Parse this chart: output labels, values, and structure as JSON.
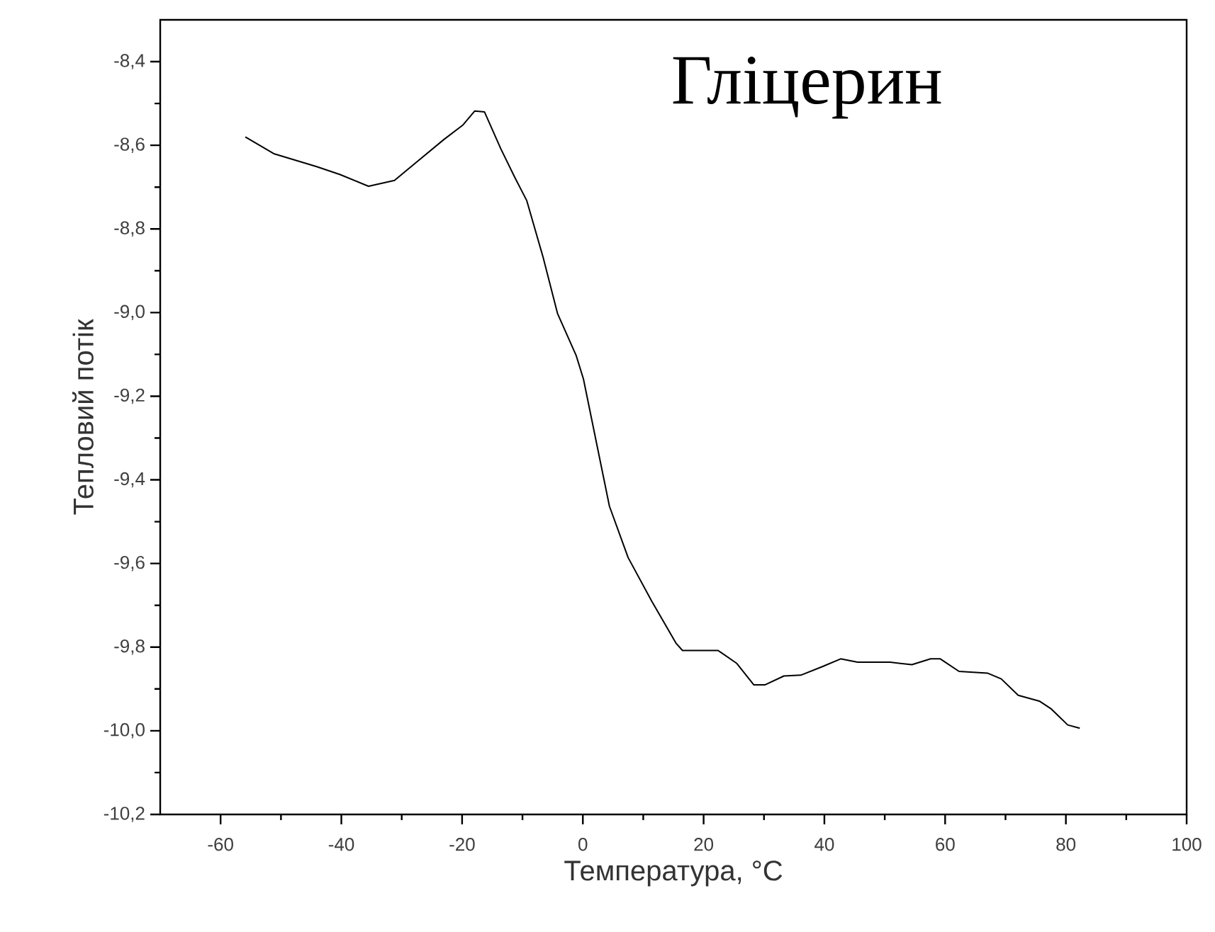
{
  "chart_data": {
    "type": "line",
    "xlabel": "Температура, °C",
    "ylabel": "Тепловий потік",
    "annotations": [
      "Гліцерин"
    ],
    "x": [
      -55.9,
      -51.2,
      -44.1,
      -40.2,
      -35.5,
      -31.2,
      -27.7,
      -23.0,
      -19.9,
      -17.9,
      -16.3,
      -13.6,
      -11.3,
      -9.3,
      -6.6,
      -4.2,
      -1.1,
      0.1,
      2.8,
      4.4,
      7.5,
      11.4,
      15.4,
      16.5,
      22.4,
      25.5,
      28.3,
      30.2,
      33.3,
      36.1,
      39.6,
      42.7,
      45.5,
      50.9,
      54.5,
      57.6,
      59.2,
      62.3,
      67.0,
      69.3,
      72.1,
      75.6,
      77.6,
      80.3,
      82.3
    ],
    "series": [
      {
        "color": "#000000",
        "values": [
          -8.58,
          -8.62,
          -8.651,
          -8.67,
          -8.698,
          -8.684,
          -8.642,
          -8.586,
          -8.552,
          -8.518,
          -8.52,
          -8.608,
          -8.676,
          -8.732,
          -8.867,
          -9.002,
          -9.103,
          -9.159,
          -9.35,
          -9.463,
          -9.586,
          -9.69,
          -9.79,
          -9.808,
          -9.808,
          -9.839,
          -9.89,
          -9.89,
          -9.869,
          -9.867,
          -9.847,
          -9.828,
          -9.836,
          -9.836,
          -9.842,
          -9.828,
          -9.828,
          -9.858,
          -9.862,
          -9.876,
          -9.915,
          -9.929,
          -9.948,
          -9.986,
          -9.994
        ]
      }
    ],
    "xlim": [
      -70,
      100
    ],
    "ylim": [
      -10.2,
      -8.3
    ],
    "xticks": [
      -60,
      -40,
      -20,
      0,
      20,
      40,
      60,
      80,
      100
    ],
    "yticks": [
      {
        "value": -10.2,
        "label": "-10,2"
      },
      {
        "value": -10.0,
        "label": "-10,0"
      },
      {
        "value": -9.8,
        "label": "-9,8"
      },
      {
        "value": -9.6,
        "label": "-9,6"
      },
      {
        "value": -9.4,
        "label": "-9,4"
      },
      {
        "value": -9.2,
        "label": "-9,2"
      },
      {
        "value": -9.0,
        "label": "-9,0"
      },
      {
        "value": -8.8,
        "label": "-8,8"
      },
      {
        "value": -8.6,
        "label": "-8,6"
      },
      {
        "value": -8.4,
        "label": "-8,4"
      }
    ],
    "grid": false,
    "marker": "none",
    "line_style": "solid"
  }
}
